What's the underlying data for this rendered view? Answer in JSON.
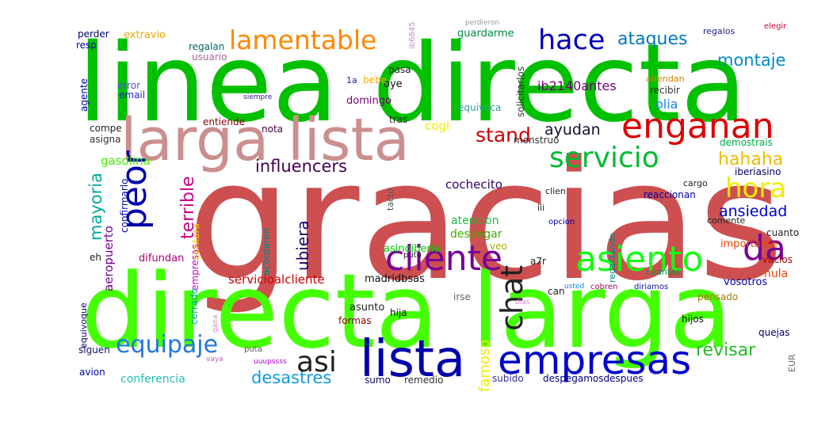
{
  "words": [
    {
      "text": "gracias",
      "color": "#cd4f4f"
    },
    {
      "text": "linea directa",
      "color": "#00c000"
    },
    {
      "text": "directa larga",
      "color": "#44ff00"
    },
    {
      "text": "larga lista",
      "color": "#cc8e8e"
    },
    {
      "text": "lista",
      "color": "#0000aa"
    },
    {
      "text": "empresas",
      "color": "#0000cc"
    },
    {
      "text": "enganan",
      "color": "#dd0000"
    },
    {
      "text": "cliente",
      "color": "#770099"
    },
    {
      "text": "asiento",
      "color": "#11ff11"
    },
    {
      "text": "servicio",
      "color": "#00bb33"
    },
    {
      "text": "hora",
      "color": "#eeee00"
    },
    {
      "text": "lamentable",
      "color": "#ff8800"
    },
    {
      "text": "hace",
      "color": "#0000bb"
    },
    {
      "text": "peor",
      "color": "#0000aa"
    },
    {
      "text": "da",
      "color": "#770099"
    },
    {
      "text": "equipaje",
      "color": "#2277dd"
    },
    {
      "text": "asi",
      "color": "#222222"
    },
    {
      "text": "chat",
      "color": "#222222"
    },
    {
      "text": "ataques",
      "color": "#0077bb"
    },
    {
      "text": "montaje",
      "color": "#0088cc"
    },
    {
      "text": "stand",
      "color": "#cc0000"
    },
    {
      "text": "influencers",
      "color": "#440055"
    },
    {
      "text": "hahaha",
      "color": "#eebb00"
    },
    {
      "text": "mayoria",
      "color": "#00aa99"
    },
    {
      "text": "terrible",
      "color": "#cc0088"
    },
    {
      "text": "ansiedad",
      "color": "#0000cc"
    },
    {
      "text": "ayudan",
      "color": "#111133"
    },
    {
      "text": "revisar",
      "color": "#22bb22"
    },
    {
      "text": "desastres",
      "color": "#1199dd"
    },
    {
      "text": "ubiera",
      "color": "#220066"
    },
    {
      "text": "famoso",
      "color": "#eeee00"
    },
    {
      "text": "ib2140antes",
      "color": "#770077"
    },
    {
      "text": "cochecito",
      "color": "#330066"
    },
    {
      "text": "atencion",
      "color": "#22bb44"
    },
    {
      "text": "despegar",
      "color": "#44aa00"
    },
    {
      "text": "servicioalcliente",
      "color": "#cc0000"
    },
    {
      "text": "madridbsas",
      "color": "#111111"
    },
    {
      "text": "olia",
      "color": "#1188ee"
    },
    {
      "text": "gasolina",
      "color": "#44ee00"
    },
    {
      "text": "aeropuerto",
      "color": "#770099"
    },
    {
      "text": "cogi",
      "color": "#eeee00"
    },
    {
      "text": "conferencia",
      "color": "#22bbbb"
    },
    {
      "text": "guardarme",
      "color": "#008844"
    },
    {
      "text": "extravio",
      "color": "#eeaa00"
    },
    {
      "text": "regalan",
      "color": "#006666"
    },
    {
      "text": "usuario",
      "color": "#aa6699"
    },
    {
      "text": "oye",
      "color": "#111111"
    },
    {
      "text": "bebe",
      "color": "#ffaa00"
    },
    {
      "text": "domingo",
      "color": "#770077"
    },
    {
      "text": "importante",
      "color": "#ee4400"
    },
    {
      "text": "nula",
      "color": "#ee4400"
    },
    {
      "text": "vosotros",
      "color": "#0000aa"
    },
    {
      "text": "asinoiberia",
      "color": "#00cc00"
    },
    {
      "text": "cuantas",
      "color": "#009944"
    },
    {
      "text": "difundan",
      "color": "#aa0077"
    },
    {
      "text": "confirmarlo",
      "color": "#0000aa"
    },
    {
      "text": "acordaron",
      "color": "#008888"
    },
    {
      "text": "empresas",
      "color": "#cc00cc"
    },
    {
      "text": "cerrado",
      "color": "#00aa99"
    },
    {
      "text": "contara",
      "color": "#ffcc00"
    },
    {
      "text": "asunto",
      "color": "#222222"
    },
    {
      "text": "hija",
      "color": "#111111"
    },
    {
      "text": "formas",
      "color": "#880000"
    },
    {
      "text": "irse",
      "color": "#666666"
    },
    {
      "text": "subido",
      "color": "#333399"
    },
    {
      "text": "remedio",
      "color": "#333333"
    },
    {
      "text": "despegamosdespues",
      "color": "#000088"
    },
    {
      "text": "sumo",
      "color": "#111166"
    },
    {
      "text": "hijos",
      "color": "#111111"
    },
    {
      "text": "quejas",
      "color": "#000066"
    },
    {
      "text": "pensado",
      "color": "#aa7700"
    },
    {
      "text": "cuanto",
      "color": "#222222"
    },
    {
      "text": "vacios",
      "color": "#aa0000"
    },
    {
      "text": "comente",
      "color": "#222222"
    },
    {
      "text": "reaccionan",
      "color": "#0000aa"
    },
    {
      "text": "iberiasino",
      "color": "#000066"
    },
    {
      "text": "cargo",
      "color": "#222222"
    },
    {
      "text": "demostrais",
      "color": "#00aa44"
    },
    {
      "text": "monstruo",
      "color": "#333333"
    },
    {
      "text": "nota",
      "color": "#440044"
    },
    {
      "text": "entiende",
      "color": "#880000"
    },
    {
      "text": "compe",
      "color": "#222222"
    },
    {
      "text": "asigna",
      "color": "#333333"
    },
    {
      "text": "agente",
      "color": "#0000aa"
    },
    {
      "text": "email",
      "color": "#2222cc"
    },
    {
      "text": "error",
      "color": "#5555cc"
    },
    {
      "text": "resp",
      "color": "#0000aa"
    },
    {
      "text": "perder",
      "color": "#000066"
    },
    {
      "text": "tras",
      "color": "#333333"
    },
    {
      "text": "equivoca",
      "color": "#339999"
    },
    {
      "text": "recibir",
      "color": "#333333"
    },
    {
      "text": "solicitarlos",
      "color": "#333333"
    },
    {
      "text": "pasa",
      "color": "#222222"
    },
    {
      "text": "1a",
      "color": "#222299"
    },
    {
      "text": "regalos",
      "color": "#222288"
    },
    {
      "text": "atiendan",
      "color": "#cc8800"
    },
    {
      "text": "eh",
      "color": "#222222"
    },
    {
      "text": "equivoque",
      "color": "#000066"
    },
    {
      "text": "siguen",
      "color": "#111166"
    },
    {
      "text": "avion",
      "color": "#0000aa"
    },
    {
      "text": "veo",
      "color": "#aaaa00"
    },
    {
      "text": "can",
      "color": "#222222"
    },
    {
      "text": "clien",
      "color": "#222222"
    },
    {
      "text": "iii",
      "color": "#222222"
    },
    {
      "text": "tacto",
      "color": "#555555"
    },
    {
      "text": "redactando",
      "color": "#008888"
    },
    {
      "text": "a7r",
      "color": "#222222"
    },
    {
      "text": "opcion",
      "color": "#0000aa"
    },
    {
      "text": "puto",
      "color": "#222222"
    },
    {
      "text": "ib6845",
      "color": "#cc88cc"
    },
    {
      "text": "perdieron",
      "color": "#999999"
    },
    {
      "text": "elegir",
      "color": "#cc0033"
    },
    {
      "text": "usted",
      "color": "#1188ee"
    },
    {
      "text": "cobren",
      "color": "#aa0066"
    },
    {
      "text": "vaya",
      "color": "#aa66aa"
    },
    {
      "text": "gana",
      "color": "#cc88cc"
    },
    {
      "text": "puta",
      "color": "#555555"
    },
    {
      "text": "uuupssss",
      "color": "#aa00cc"
    },
    {
      "text": "EUR",
      "color": "#666666"
    },
    {
      "text": "diriamos",
      "color": "#111199"
    },
    {
      "text": "siempre",
      "color": "#222288"
    },
    {
      "text": "dias",
      "color": "#cc88cc"
    }
  ]
}
